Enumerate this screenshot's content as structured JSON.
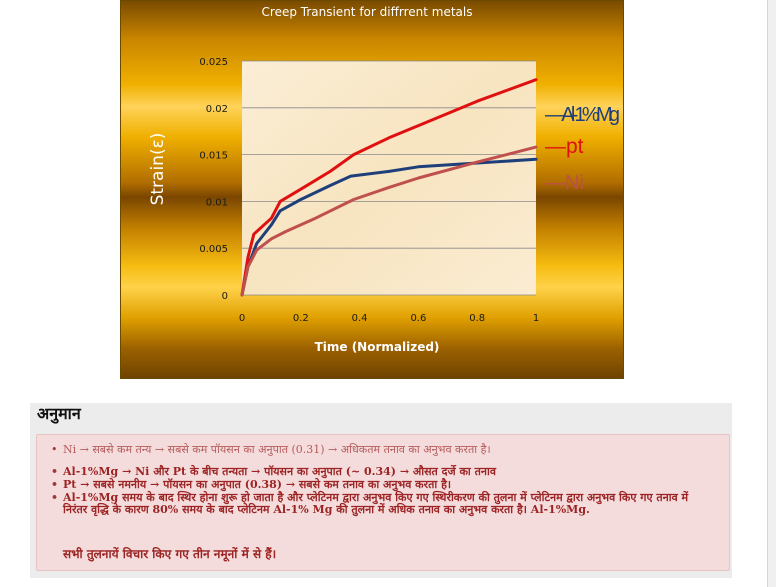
{
  "chart_data": {
    "type": "line",
    "title": "Creep Transient  for diffrrent metals",
    "xlabel": "Time (Normalized)",
    "ylabel": "Strain(ε)",
    "xlim": [
      0,
      1
    ],
    "ylim": [
      0,
      0.025
    ],
    "x_ticks": [
      "0",
      "0.2",
      "0.4",
      "0.6",
      "0.8",
      "1"
    ],
    "y_ticks": [
      "0",
      "0.005",
      "0.01",
      "0.015",
      "0.02",
      "0.025"
    ],
    "grid": "horizontal",
    "legend_position": "right",
    "series": [
      {
        "name": "Al-1%Mg",
        "color": "#1f3f7a",
        "points": [
          [
            0,
            0
          ],
          [
            0.02,
            0.003
          ],
          [
            0.05,
            0.0055
          ],
          [
            0.1,
            0.0075
          ],
          [
            0.13,
            0.009
          ],
          [
            0.2,
            0.0102
          ],
          [
            0.3,
            0.0117
          ],
          [
            0.37,
            0.0127
          ],
          [
            0.5,
            0.0132
          ],
          [
            0.6,
            0.0137
          ],
          [
            0.8,
            0.0141
          ],
          [
            1,
            0.0145
          ]
        ]
      },
      {
        "name": "pt",
        "color": "#e01010",
        "points": [
          [
            0,
            0
          ],
          [
            0.02,
            0.004
          ],
          [
            0.04,
            0.0065
          ],
          [
            0.1,
            0.0082
          ],
          [
            0.13,
            0.01
          ],
          [
            0.2,
            0.0113
          ],
          [
            0.3,
            0.0132
          ],
          [
            0.38,
            0.015
          ],
          [
            0.5,
            0.0168
          ],
          [
            0.6,
            0.0181
          ],
          [
            0.8,
            0.0207
          ],
          [
            1,
            0.023
          ]
        ]
      },
      {
        "name": "Ni",
        "color": "#c0504d",
        "points": [
          [
            0,
            0
          ],
          [
            0.02,
            0.003
          ],
          [
            0.05,
            0.0048
          ],
          [
            0.1,
            0.006
          ],
          [
            0.15,
            0.0068
          ],
          [
            0.25,
            0.0082
          ],
          [
            0.38,
            0.0102
          ],
          [
            0.5,
            0.0115
          ],
          [
            0.6,
            0.0125
          ],
          [
            0.8,
            0.0142
          ],
          [
            1,
            0.0158
          ]
        ]
      }
    ]
  },
  "panel": {
    "title": "अनुमान",
    "bullets": [
      "Ni → सबसे कम तन्य → सबसे कम पॉयसन का अनुपात (0.31) → अधिकतम तनाव का अनुभव करता है।",
      "Al-1%Mg → Ni और Pt के बीच तन्यता → पॉयसन का अनुपात (~ 0.34) → औसत दर्जे का तनाव",
      "Pt → सबसे नमनीय → पॉयसन का अनुपात (0.38) → सबसे कम तनाव का अनुभव करता है।",
      "Al-1%Mg समय के बाद स्थिर होना शुरू हो जाता है और प्लेटिनम द्वारा अनुभव किए गए स्थिरीकरण की तुलना में प्लेटिनम द्वारा अनुभव किए गए तनाव में निरंतर वृद्धि के कारण 80% समय के बाद प्लेटिनम Al-1% Mg की तुलना में अधिक तनाव का अनुभव करता है। Al-1%Mg."
    ],
    "conclusion": "सभी तुलनायें विचार किए गए तीन नमूनों में से हैं।"
  }
}
